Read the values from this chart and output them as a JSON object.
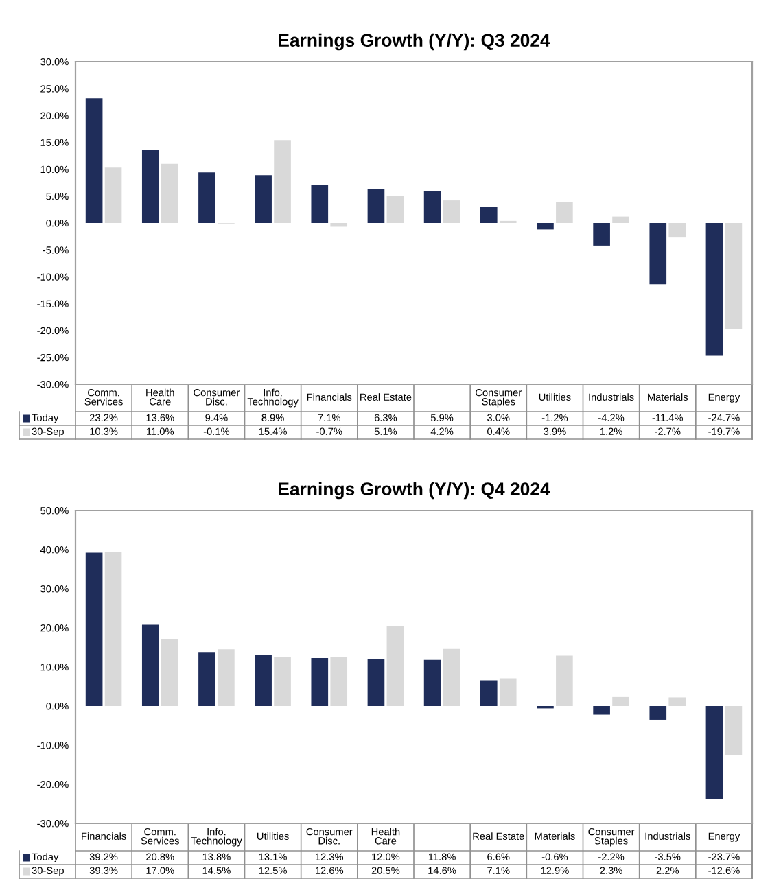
{
  "chart_data": [
    {
      "type": "bar",
      "title": "Earnings Growth (Y/Y): Q3 2024",
      "categories": [
        "Comm.\nServices",
        "Health\nCare",
        "Consumer\nDisc.",
        "Info.\nTechnology",
        "Financials",
        "Real Estate",
        null,
        "Consumer\nStaples",
        "Utilities",
        "Industrials",
        "Materials",
        "Energy"
      ],
      "series": [
        {
          "name": "Today",
          "color": "#1f2d5a",
          "values": [
            23.2,
            13.6,
            9.4,
            8.9,
            7.1,
            6.3,
            5.9,
            3.0,
            -1.2,
            -4.2,
            -11.4,
            -24.7
          ],
          "value_labels": [
            "23.2%",
            "13.6%",
            "9.4%",
            "8.9%",
            "7.1%",
            "6.3%",
            "5.9%",
            "3.0%",
            "-1.2%",
            "-4.2%",
            "-11.4%",
            "-24.7%"
          ]
        },
        {
          "name": "30-Sep",
          "color": "#d9d9d9",
          "values": [
            10.3,
            11.0,
            -0.1,
            15.4,
            -0.7,
            5.1,
            4.2,
            0.4,
            3.9,
            1.2,
            -2.7,
            -19.7
          ],
          "value_labels": [
            "10.3%",
            "11.0%",
            "-0.1%",
            "15.4%",
            "-0.7%",
            "5.1%",
            "4.2%",
            "0.4%",
            "3.9%",
            "1.2%",
            "-2.7%",
            "-19.7%"
          ]
        }
      ],
      "ylim": [
        -30,
        30
      ],
      "yticks": [
        {
          "value": -30,
          "label": "-30.0%"
        },
        {
          "value": -25,
          "label": "-25.0%"
        },
        {
          "value": -20,
          "label": "-20.0%"
        },
        {
          "value": -15,
          "label": "-15.0%"
        },
        {
          "value": -10,
          "label": "-10.0%"
        },
        {
          "value": -5,
          "label": "-5.0%"
        },
        {
          "value": 0,
          "label": "0.0%"
        },
        {
          "value": 5,
          "label": "5.0%"
        },
        {
          "value": 10,
          "label": "10.0%"
        },
        {
          "value": 15,
          "label": "15.0%"
        },
        {
          "value": 20,
          "label": "20.0%"
        },
        {
          "value": 25,
          "label": "25.0%"
        },
        {
          "value": 30,
          "label": "30.0%"
        }
      ],
      "legend": "bottom left"
    },
    {
      "type": "bar",
      "title": "Earnings Growth (Y/Y): Q4 2024",
      "categories": [
        "Financials",
        "Comm.\nServices",
        "Info.\nTechnology",
        "Utilities",
        "Consumer\nDisc.",
        "Health\nCare",
        null,
        "Real Estate",
        "Materials",
        "Consumer\nStaples",
        "Industrials",
        "Energy"
      ],
      "series": [
        {
          "name": "Today",
          "color": "#1f2d5a",
          "values": [
            39.2,
            20.8,
            13.8,
            13.1,
            12.3,
            12.0,
            11.8,
            6.6,
            -0.6,
            -2.2,
            -3.5,
            -23.7
          ],
          "value_labels": [
            "39.2%",
            "20.8%",
            "13.8%",
            "13.1%",
            "12.3%",
            "12.0%",
            "11.8%",
            "6.6%",
            "-0.6%",
            "-2.2%",
            "-3.5%",
            "-23.7%"
          ]
        },
        {
          "name": "30-Sep",
          "color": "#d9d9d9",
          "values": [
            39.3,
            17.0,
            14.5,
            12.5,
            12.6,
            20.5,
            14.6,
            7.1,
            12.9,
            2.3,
            2.2,
            -12.6
          ],
          "value_labels": [
            "39.3%",
            "17.0%",
            "14.5%",
            "12.5%",
            "12.6%",
            "20.5%",
            "14.6%",
            "7.1%",
            "12.9%",
            "2.3%",
            "2.2%",
            "-12.6%"
          ]
        }
      ],
      "ylim": [
        -30,
        50
      ],
      "yticks": [
        {
          "value": -30,
          "label": "-30.0%"
        },
        {
          "value": -20,
          "label": "-20.0%"
        },
        {
          "value": -10,
          "label": "-10.0%"
        },
        {
          "value": 0,
          "label": "0.0%"
        },
        {
          "value": 10,
          "label": "10.0%"
        },
        {
          "value": 20,
          "label": "20.0%"
        },
        {
          "value": 30,
          "label": "30.0%"
        },
        {
          "value": 40,
          "label": "40.0%"
        },
        {
          "value": 50,
          "label": "50.0%"
        }
      ],
      "legend": "bottom left"
    }
  ]
}
